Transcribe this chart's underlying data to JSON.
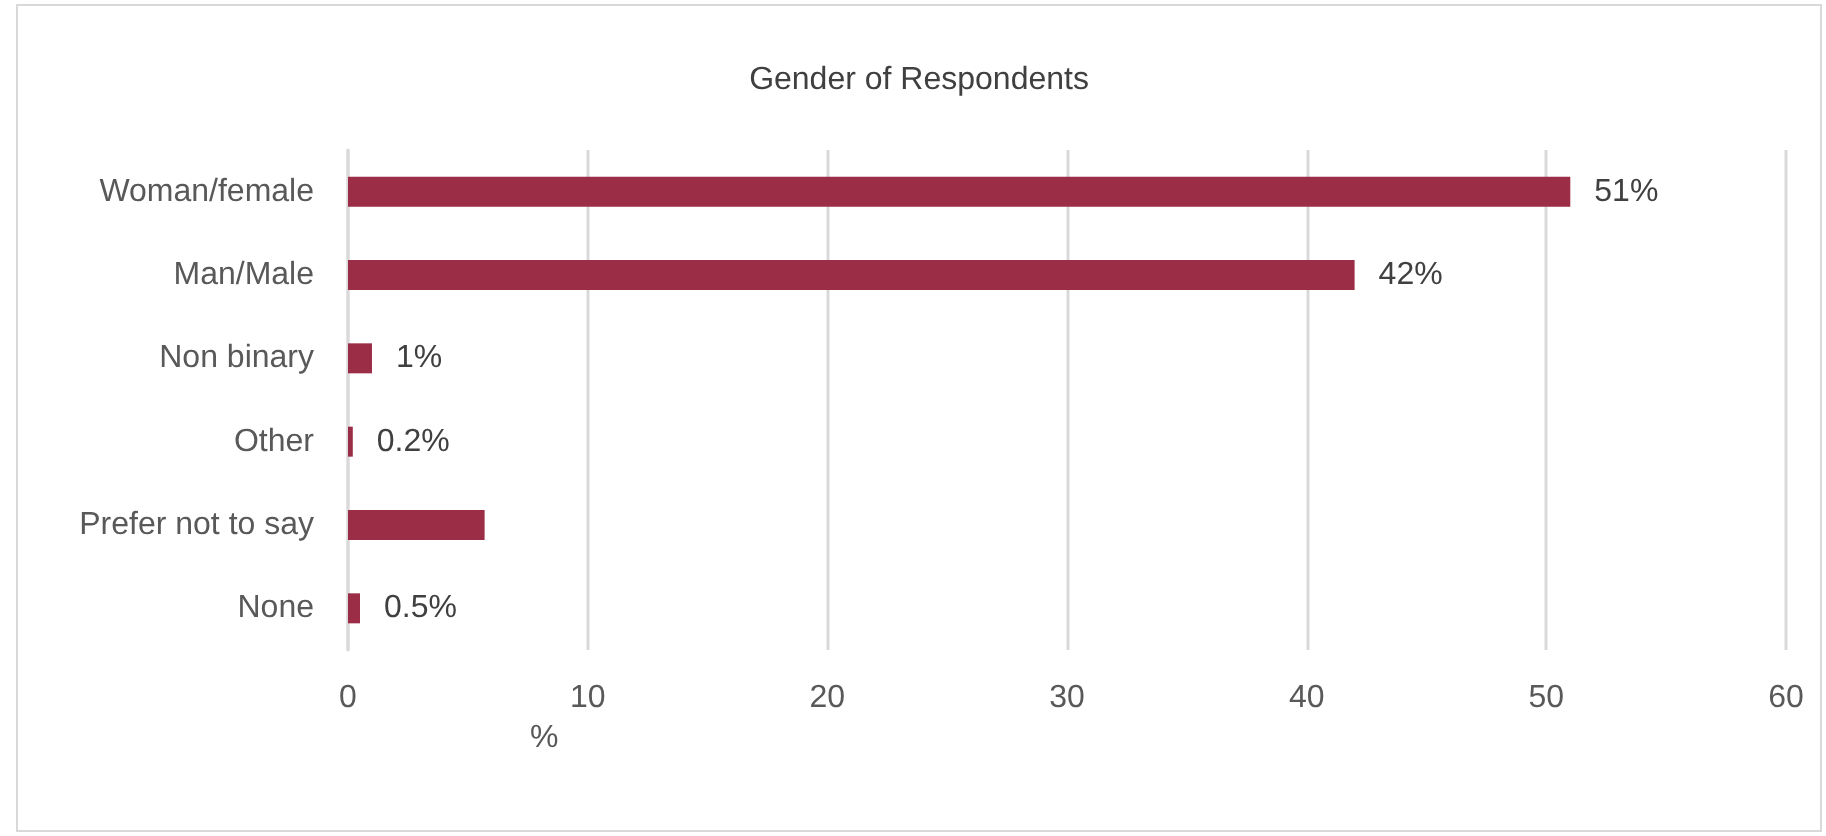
{
  "chart_data": {
    "type": "bar",
    "orientation": "horizontal",
    "title": "Gender of Respondents",
    "xlabel": "%",
    "categories": [
      "Woman/female",
      "Man/Male",
      "Non binary",
      "Other",
      "Prefer not to say",
      "None"
    ],
    "values": [
      51,
      42,
      1,
      0.2,
      5.7,
      0.5
    ],
    "value_labels": [
      "51%",
      "42%",
      "1%",
      "0.2%",
      null,
      "0.5%"
    ],
    "color": "#9b2d46",
    "xlim": [
      0,
      60
    ],
    "xticks": [
      0,
      10,
      20,
      30,
      40,
      50,
      60
    ],
    "grid": "x"
  }
}
